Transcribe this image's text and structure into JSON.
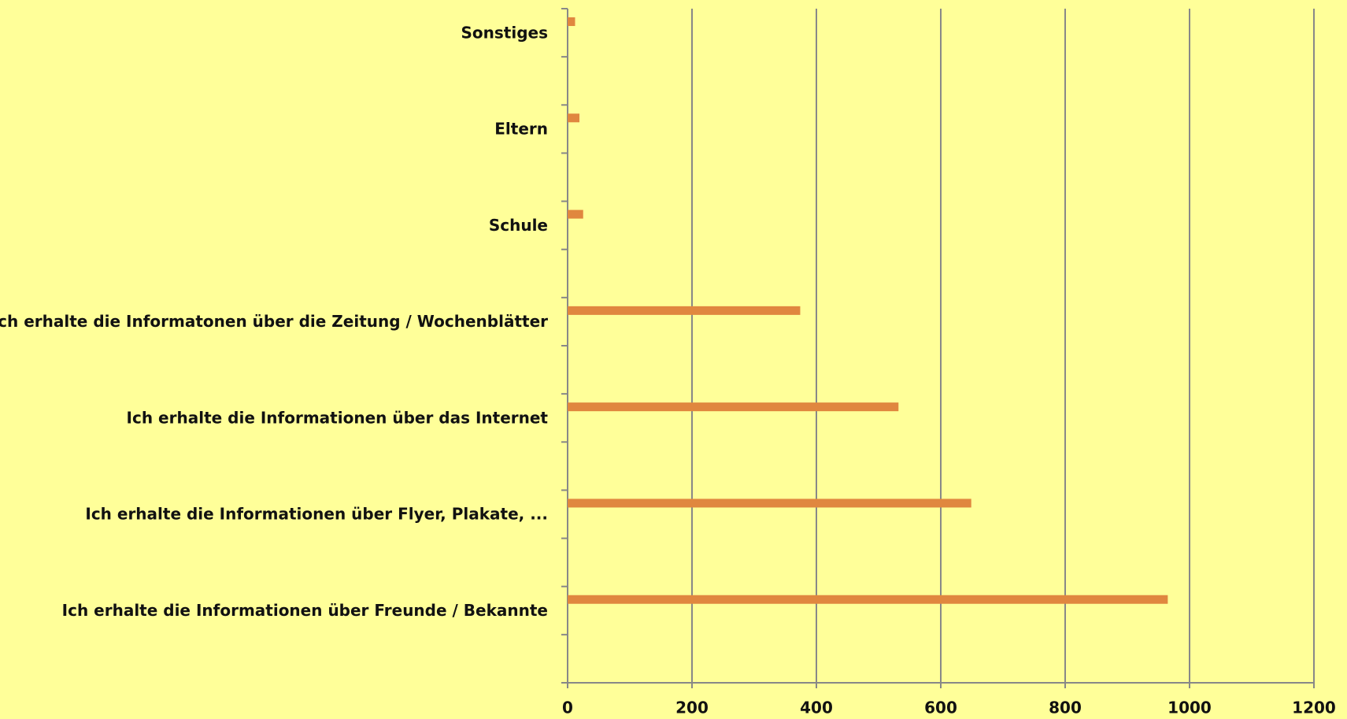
{
  "chart_data": {
    "type": "bar",
    "orientation": "horizontal",
    "categories": [
      "Ich erhalte die Informationen über Freunde / Bekannte",
      "Ich erhalte die Informationen über Flyer, Plakate, ...",
      "Ich erhalte die Informationen über das Internet",
      "Ich erhalte die Informatonen über die Zeitung / Wochenblätter",
      "Schule",
      "Eltern",
      "Sonstiges"
    ],
    "values": [
      965,
      649,
      532,
      374,
      25,
      19,
      12
    ],
    "color": "#e0873f",
    "xlim": [
      0,
      1200
    ],
    "xticks": [
      0,
      200,
      400,
      600,
      800,
      1000,
      1200
    ],
    "grid": true
  }
}
